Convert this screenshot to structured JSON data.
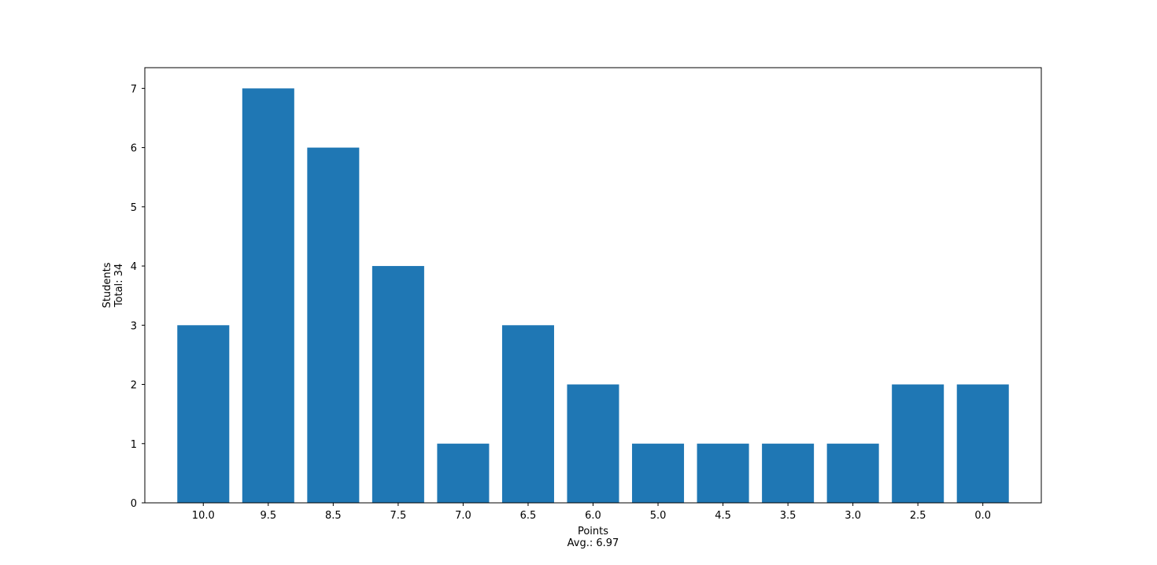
{
  "chart_data": {
    "type": "bar",
    "categories": [
      "10.0",
      "9.5",
      "8.5",
      "7.5",
      "7.0",
      "6.5",
      "6.0",
      "5.0",
      "4.5",
      "3.5",
      "3.0",
      "2.5",
      "0.0"
    ],
    "values": [
      3,
      7,
      6,
      4,
      1,
      3,
      2,
      1,
      1,
      1,
      1,
      2,
      2
    ],
    "xlabel": [
      "Points",
      "Avg.: 6.97"
    ],
    "ylabel": [
      "Students",
      "Total: 34"
    ],
    "ylim": [
      0,
      7.35
    ],
    "yticks": [
      "0",
      "1",
      "2",
      "3",
      "4",
      "5",
      "6",
      "7"
    ],
    "bar_color": "#1f77b4",
    "grid": false,
    "legend": "none"
  }
}
